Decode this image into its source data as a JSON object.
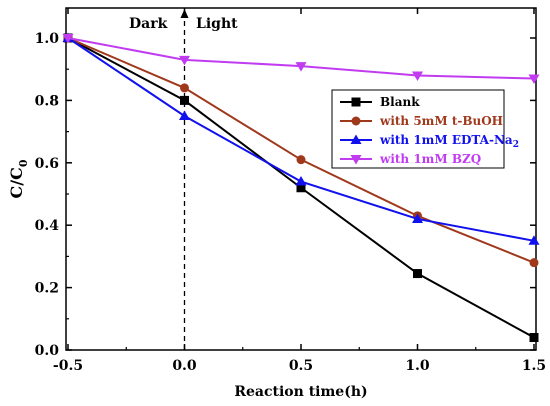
{
  "chart_data": {
    "type": "line",
    "xlabel": "Reaction time(h)",
    "ylabel_main": "C/C",
    "ylabel_sub": "0",
    "xlim": [
      -0.5,
      1.5
    ],
    "ylim": [
      0.0,
      1.1
    ],
    "xticks": [
      -0.5,
      0.0,
      0.5,
      1.0,
      1.5
    ],
    "xtick_labels": [
      "-0.5",
      "0.0",
      "0.5",
      "1.0",
      "1.5"
    ],
    "yticks": [
      0.0,
      0.2,
      0.4,
      0.6,
      0.8,
      1.0
    ],
    "ytick_labels": [
      "0.0",
      "0.2",
      "0.4",
      "0.6",
      "0.8",
      "1.0"
    ],
    "grid": false,
    "legend_position": "center-right",
    "annotations": {
      "dark_label": "Dark",
      "light_label": "Light",
      "divider_x": 0.0
    },
    "x": [
      -0.5,
      0.0,
      0.5,
      1.0,
      1.5
    ],
    "series": [
      {
        "name": "Blank",
        "values": [
          1.0,
          0.8,
          0.52,
          0.245,
          0.04
        ],
        "color": "#000000",
        "marker": "square"
      },
      {
        "name": "with 5mM t-BuOH",
        "values": [
          1.0,
          0.84,
          0.61,
          0.43,
          0.28
        ],
        "color": "#a0391c",
        "marker": "circle"
      },
      {
        "name": "with 1mM EDTA-Na",
        "name_sub": "2",
        "values": [
          1.0,
          0.75,
          0.54,
          0.42,
          0.35
        ],
        "color": "#1111ee",
        "marker": "triangle-up"
      },
      {
        "name": "with 1mM BZQ",
        "values": [
          1.0,
          0.93,
          0.91,
          0.88,
          0.87
        ],
        "color": "#c13cf0",
        "marker": "triangle-down"
      }
    ]
  }
}
